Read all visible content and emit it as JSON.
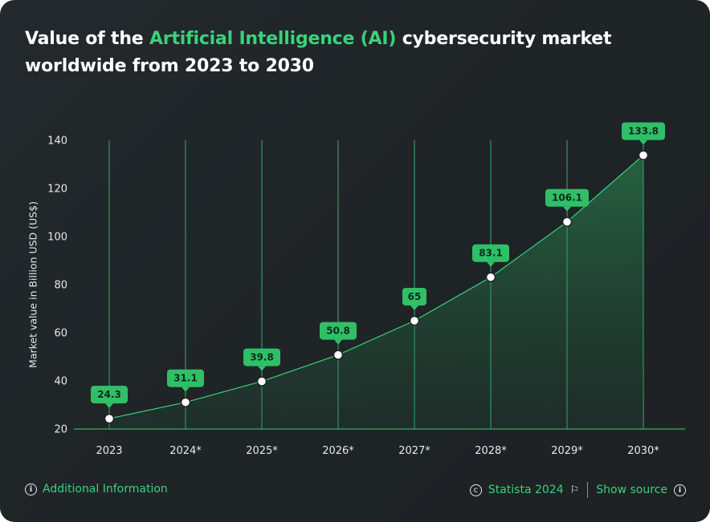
{
  "title": {
    "part1": "Value of the ",
    "highlight": "Artificial Intelligence (AI)",
    "part2": " cybersecurity market worldwide from 2023 to 2030"
  },
  "footer": {
    "additional_info": "Additional Information",
    "copyright": "Statista 2024",
    "show_source": "Show source"
  },
  "colors": {
    "background": "#202528",
    "accent": "#3bd17a",
    "label_bg": "#2fc067",
    "line": "#3bd17a"
  },
  "chart_data": {
    "type": "area",
    "title": "Value of the Artificial Intelligence (AI) cybersecurity market worldwide from 2023 to 2030",
    "xlabel": "",
    "ylabel": "Market value in Billion USD (US$)",
    "categories": [
      "2023",
      "2024*",
      "2025*",
      "2026*",
      "2027*",
      "2028*",
      "2029*",
      "2030*"
    ],
    "values": [
      24.3,
      31.1,
      39.8,
      50.8,
      65,
      83.1,
      106.1,
      133.8
    ],
    "value_labels": [
      "24.3",
      "31.1",
      "39.8",
      "50.8",
      "65",
      "83.1",
      "106.1",
      "133.8"
    ],
    "ylim": [
      20,
      140
    ],
    "yticks": [
      "20",
      "40",
      "60",
      "80",
      "100",
      "120",
      "140"
    ],
    "grid": "vertical lines at each category",
    "legend": "none"
  }
}
